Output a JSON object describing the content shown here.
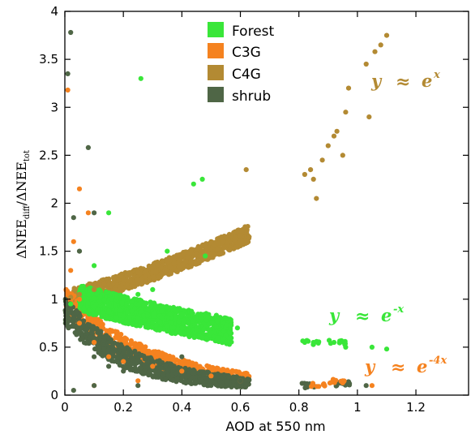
{
  "chart_data": {
    "type": "scatter",
    "xlabel": "AOD at 550 nm",
    "ylabel": {
      "base": "ΔNEE",
      "sub": "diff",
      "slash": "/ΔNEE",
      "sub2": "tot"
    },
    "xlim": [
      0,
      1.38
    ],
    "ylim": [
      0,
      4
    ],
    "xticks": [
      0,
      0.2,
      0.4,
      0.6,
      0.8,
      1,
      1.2
    ],
    "xtick_labels": [
      "0",
      "0.2",
      "0.4",
      "0.6",
      "0.8",
      "1",
      "1.2"
    ],
    "yticks": [
      0,
      0.5,
      1,
      1.5,
      2,
      2.5,
      3,
      3.5,
      4
    ],
    "ytick_labels": [
      "0",
      "0.5",
      "1",
      "1.5",
      "2",
      "2.5",
      "3",
      "3.5",
      "4"
    ],
    "grid": false,
    "legend_position": "top-center",
    "colors": {
      "Forest": "#39e639",
      "C3G": "#f5821f",
      "C4G": "#b38a33",
      "shrub": "#4f6646"
    },
    "series": [
      {
        "name": "Forest",
        "description_points": [
          [
            0.02,
            0.95
          ],
          [
            0.05,
            0.98
          ],
          [
            0.1,
            0.92
          ],
          [
            0.15,
            0.88
          ],
          [
            0.2,
            0.82
          ],
          [
            0.25,
            0.8
          ],
          [
            0.3,
            0.76
          ],
          [
            0.35,
            0.72
          ],
          [
            0.4,
            0.7
          ],
          [
            0.45,
            0.68
          ],
          [
            0.5,
            0.65
          ],
          [
            0.55,
            0.62
          ],
          [
            0.26,
            3.3
          ],
          [
            0.47,
            2.25
          ],
          [
            0.44,
            2.2
          ],
          [
            0.35,
            1.5
          ],
          [
            0.15,
            1.9
          ],
          [
            0.48,
            1.45
          ],
          [
            0.59,
            0.7
          ],
          [
            0.82,
            0.55
          ],
          [
            0.85,
            0.55
          ],
          [
            0.92,
            0.55
          ],
          [
            0.96,
            0.5
          ],
          [
            1.05,
            0.5
          ],
          [
            1.1,
            0.48
          ],
          [
            0.25,
            1.05
          ],
          [
            0.3,
            1.1
          ],
          [
            0.1,
            1.35
          ],
          [
            0.16,
            1.0
          ]
        ]
      },
      {
        "name": "C3G",
        "description_points": [
          [
            0.01,
            3.18
          ],
          [
            0.02,
            1.3
          ],
          [
            0.05,
            1.0
          ],
          [
            0.05,
            0.75
          ],
          [
            0.1,
            0.55
          ],
          [
            0.15,
            0.4
          ],
          [
            0.2,
            0.35
          ],
          [
            0.3,
            0.3
          ],
          [
            0.4,
            0.25
          ],
          [
            0.5,
            0.2
          ],
          [
            0.6,
            0.15
          ],
          [
            0.05,
            2.15
          ],
          [
            0.08,
            1.9
          ],
          [
            0.03,
            1.6
          ],
          [
            0.95,
            0.15
          ],
          [
            1.05,
            0.1
          ],
          [
            0.85,
            0.1
          ],
          [
            0.1,
            0.1
          ],
          [
            0.25,
            0.15
          ]
        ]
      },
      {
        "name": "C4G",
        "description_points": [
          [
            0.02,
            1.02
          ],
          [
            0.05,
            1.05
          ],
          [
            0.1,
            1.1
          ],
          [
            0.15,
            1.15
          ],
          [
            0.2,
            1.2
          ],
          [
            0.25,
            1.28
          ],
          [
            0.3,
            1.34
          ],
          [
            0.35,
            1.4
          ],
          [
            0.4,
            1.45
          ],
          [
            0.45,
            1.52
          ],
          [
            0.5,
            1.6
          ],
          [
            0.55,
            1.65
          ],
          [
            0.58,
            1.62
          ],
          [
            0.62,
            2.35
          ],
          [
            0.63,
            1.65
          ],
          [
            0.82,
            2.3
          ],
          [
            0.84,
            2.35
          ],
          [
            0.85,
            2.25
          ],
          [
            0.86,
            2.05
          ],
          [
            0.88,
            2.45
          ],
          [
            0.9,
            2.6
          ],
          [
            0.92,
            2.7
          ],
          [
            0.93,
            2.75
          ],
          [
            0.95,
            2.5
          ],
          [
            0.96,
            2.95
          ],
          [
            0.97,
            3.2
          ],
          [
            1.03,
            3.45
          ],
          [
            1.06,
            3.58
          ],
          [
            1.08,
            3.65
          ],
          [
            1.1,
            3.75
          ],
          [
            1.04,
            2.9
          ]
        ]
      },
      {
        "name": "shrub",
        "description_points": [
          [
            0.02,
            3.78
          ],
          [
            0.01,
            3.35
          ],
          [
            0.08,
            2.58
          ],
          [
            0.03,
            1.85
          ],
          [
            0.1,
            1.9
          ],
          [
            0.05,
            1.5
          ],
          [
            0.02,
            0.9
          ],
          [
            0.05,
            0.65
          ],
          [
            0.1,
            0.4
          ],
          [
            0.15,
            0.3
          ],
          [
            0.2,
            0.25
          ],
          [
            0.3,
            0.2
          ],
          [
            0.4,
            0.18
          ],
          [
            0.5,
            0.15
          ],
          [
            0.6,
            0.15
          ],
          [
            0.03,
            0.05
          ],
          [
            0.1,
            0.1
          ],
          [
            0.25,
            0.1
          ],
          [
            0.85,
            0.1
          ],
          [
            0.95,
            0.12
          ],
          [
            1.03,
            0.1
          ],
          [
            0.4,
            0.4
          ]
        ]
      }
    ],
    "annotations": [
      {
        "text": "y ≈ e",
        "exponent": "x",
        "color": "#b38a33",
        "position": "upper-right"
      },
      {
        "text": "y ≈ e",
        "exponent": "-x",
        "color": "#39e639",
        "position": "middle-right"
      },
      {
        "text": "y ≈ e",
        "exponent": "-4x",
        "color": "#f5821f",
        "position": "lower-right"
      }
    ]
  },
  "legend": {
    "items": [
      {
        "label": "Forest",
        "color": "#39e639"
      },
      {
        "label": "C3G",
        "color": "#f5821f"
      },
      {
        "label": "C4G",
        "color": "#b38a33"
      },
      {
        "label": "shrub",
        "color": "#4f6646"
      }
    ]
  },
  "equations": {
    "c4g": {
      "base": "y",
      "approx": "≈",
      "e": "e",
      "exp": "x"
    },
    "forest": {
      "base": "y",
      "approx": "≈",
      "e": "e",
      "exp": "-x"
    },
    "c3g": {
      "base": "y",
      "approx": "≈",
      "e": "e",
      "exp": "-4x"
    }
  }
}
